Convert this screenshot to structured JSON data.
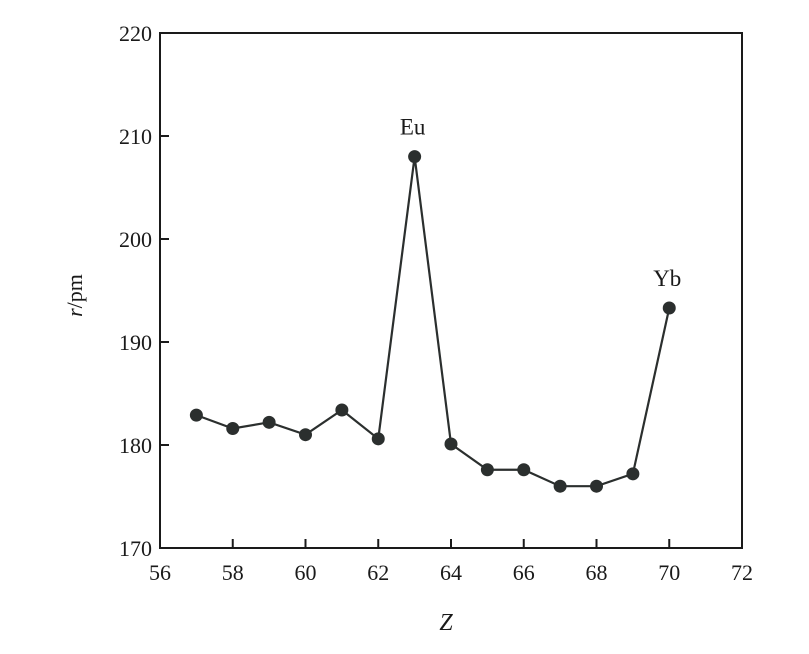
{
  "chart_data": {
    "type": "line",
    "title": "",
    "xlabel": "Z",
    "ylabel_var": "r",
    "ylabel_unit": "/pm",
    "xlim": [
      56,
      72
    ],
    "ylim": [
      170,
      220
    ],
    "xticks": [
      56,
      58,
      60,
      62,
      64,
      66,
      68,
      70,
      72
    ],
    "yticks": [
      170,
      180,
      190,
      200,
      210,
      220
    ],
    "grid": false,
    "series": [
      {
        "x": [
          57,
          58,
          59,
          60,
          61,
          62,
          63,
          64,
          65,
          66,
          67,
          68,
          69,
          70
        ],
        "y": [
          182.9,
          181.6,
          182.2,
          181.0,
          183.4,
          180.6,
          208.0,
          180.1,
          177.6,
          177.6,
          176.0,
          176.0,
          177.2,
          193.3
        ]
      }
    ],
    "annotations": [
      {
        "text": "Eu",
        "x": 63,
        "y": 208.0
      },
      {
        "text": "Yb",
        "x": 70,
        "y": 193.3
      }
    ],
    "color": "#2b2f2e"
  }
}
